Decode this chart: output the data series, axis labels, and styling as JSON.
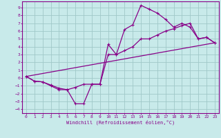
{
  "xlabel": "Windchill (Refroidissement éolien,°C)",
  "bg_color": "#c8eaea",
  "grid_color": "#a0c8c8",
  "line_color": "#880088",
  "spine_color": "#880088",
  "xlim": [
    -0.5,
    23.5
  ],
  "ylim": [
    -4.5,
    9.8
  ],
  "xticks": [
    0,
    1,
    2,
    3,
    4,
    5,
    6,
    7,
    8,
    9,
    10,
    11,
    12,
    13,
    14,
    15,
    16,
    17,
    18,
    19,
    20,
    21,
    22,
    23
  ],
  "yticks": [
    -4,
    -3,
    -2,
    -1,
    0,
    1,
    2,
    3,
    4,
    5,
    6,
    7,
    8,
    9
  ],
  "series1_x": [
    0,
    1,
    2,
    3,
    4,
    5,
    6,
    7,
    8,
    9,
    10,
    11,
    12,
    13,
    14,
    15,
    16,
    17,
    18,
    19,
    20,
    21,
    22,
    23
  ],
  "series1_y": [
    0.2,
    -0.4,
    -0.5,
    -0.9,
    -1.3,
    -1.5,
    -3.3,
    -3.3,
    -0.8,
    -0.8,
    4.3,
    3.0,
    6.2,
    6.8,
    9.3,
    8.8,
    8.3,
    7.5,
    6.5,
    7.0,
    6.5,
    5.0,
    5.2,
    4.5
  ],
  "series2_x": [
    0,
    1,
    2,
    3,
    4,
    5,
    6,
    7,
    8,
    9,
    10,
    11,
    12,
    13,
    14,
    15,
    16,
    17,
    18,
    19,
    20,
    21,
    22,
    23
  ],
  "series2_y": [
    0.2,
    -0.4,
    -0.5,
    -1.0,
    -1.5,
    -1.5,
    -1.2,
    -0.8,
    -0.8,
    -0.8,
    3.0,
    3.0,
    3.5,
    4.0,
    5.0,
    5.0,
    5.5,
    6.0,
    6.3,
    6.7,
    7.0,
    5.0,
    5.2,
    4.5
  ],
  "series3_x": [
    0,
    23
  ],
  "series3_y": [
    0.2,
    4.5
  ]
}
